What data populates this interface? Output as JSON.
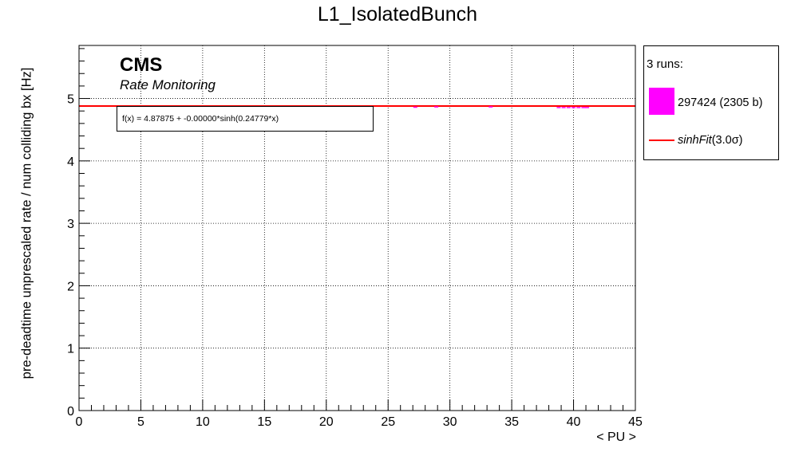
{
  "chart_data": {
    "type": "line",
    "title": "L1_IsolatedBunch",
    "xlabel": "< PU >",
    "ylabel": "pre-deadtime unprescaled rate / num colliding bx [Hz]",
    "xlim": [
      0,
      45
    ],
    "ylim": [
      0,
      5.85
    ],
    "xticks": [
      0,
      5,
      10,
      15,
      20,
      25,
      30,
      35,
      40,
      45
    ],
    "yticks": [
      0,
      1,
      2,
      3,
      4,
      5
    ],
    "grid": true,
    "annotations": {
      "experiment": "CMS",
      "subtitle": "Rate Monitoring",
      "fit_formula": "f(x) = 4.87875 + -0.00000*sinh(0.24779*x)"
    },
    "legend": {
      "placement": "right, outside plot",
      "header": "3 runs:",
      "entries": [
        {
          "label": "297424 (2305 b)",
          "color": "#ff00ff",
          "kind": "marker"
        },
        {
          "label_main": "sinhFit",
          "label_suffix": "(3.0σ)",
          "color": "#ff0000",
          "kind": "line"
        }
      ]
    },
    "series": [
      {
        "name": "297424 (2305 b)",
        "color": "#ff00ff",
        "x": [
          27.2,
          28.9,
          33.3,
          38.8,
          39.2,
          39.6,
          40.0,
          40.4,
          40.8,
          41.1
        ],
        "y": [
          4.86,
          4.865,
          4.865,
          4.855,
          4.855,
          4.855,
          4.855,
          4.855,
          4.855,
          4.855
        ]
      },
      {
        "name": "sinhFit",
        "color": "#ff0000",
        "fit": {
          "a": 4.87875,
          "b": -0.0,
          "c": 0.24779
        },
        "x": [
          0,
          5,
          10,
          15,
          20,
          25,
          30,
          35,
          40,
          45
        ],
        "y": [
          4.87875,
          4.87875,
          4.87875,
          4.87875,
          4.87875,
          4.87875,
          4.87875,
          4.87875,
          4.87875,
          4.87875
        ]
      }
    ]
  }
}
